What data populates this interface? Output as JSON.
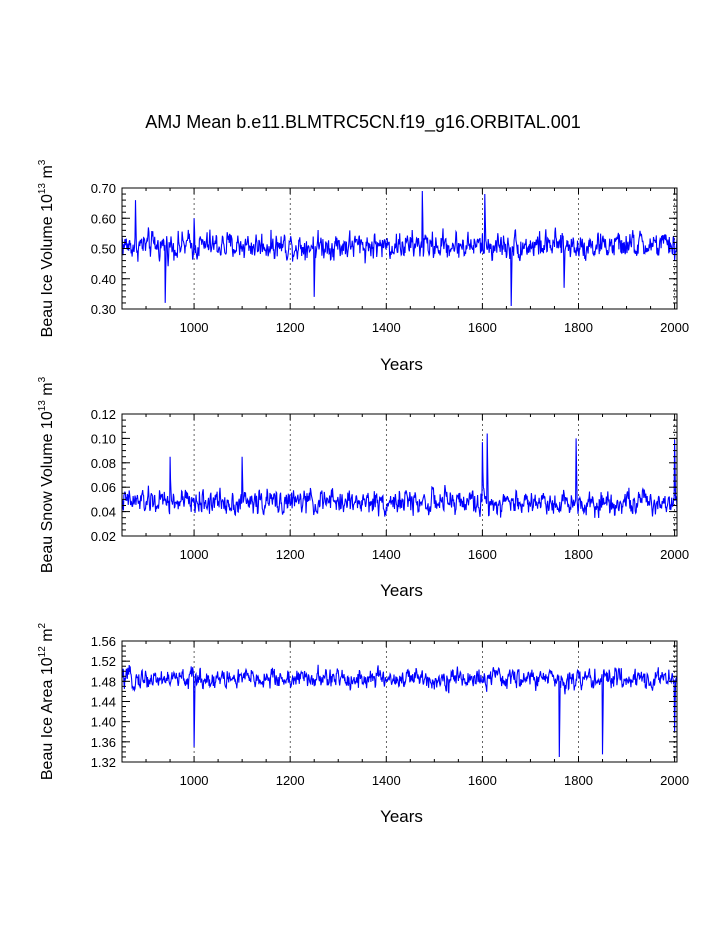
{
  "title": "AMJ Mean b.e11.BLMTRC5CN.f19_g16.ORBITAL.001",
  "chart_data": [
    {
      "type": "line",
      "name": "ice-volume",
      "ylabel": {
        "prefix": "Beau Ice Volume 10",
        "exp1": "13",
        "mid": " m",
        "exp2": "3"
      },
      "xlabel": "Years",
      "xlim": [
        850,
        2005
      ],
      "ylim": [
        0.3,
        0.7
      ],
      "xticks": [
        1000,
        1200,
        1400,
        1600,
        1800,
        2000
      ],
      "xtick_labels": [
        "1000",
        "1200",
        "1400",
        "1600",
        "1800",
        "2000"
      ],
      "yticks": [
        0.3,
        0.4,
        0.5,
        0.6,
        0.7
      ],
      "ytick_labels": [
        "0.30",
        "0.40",
        "0.50",
        "0.60",
        "0.70"
      ],
      "ygrid_minor": 0.02,
      "xgrid_dashed": [
        1000,
        1200,
        1400,
        1600,
        1800,
        2000
      ],
      "color": "#0000ff",
      "series_summary": {
        "mean": 0.51,
        "amplitude": 0.045,
        "min_year": 1660,
        "min_value": 0.31,
        "max_year": 1475,
        "max_value": 0.69
      },
      "key_points": [
        [
          850,
          0.54
        ],
        [
          878,
          0.66
        ],
        [
          940,
          0.32
        ],
        [
          1000,
          0.6
        ],
        [
          1250,
          0.34
        ],
        [
          1475,
          0.69
        ],
        [
          1605,
          0.68
        ],
        [
          1660,
          0.31
        ],
        [
          1770,
          0.37
        ],
        [
          2000,
          0.46
        ]
      ]
    },
    {
      "type": "line",
      "name": "snow-volume",
      "ylabel": {
        "prefix": "Beau Snow Volume 10",
        "exp1": "13",
        "mid": " m",
        "exp2": "3"
      },
      "xlabel": "Years",
      "xlim": [
        850,
        2005
      ],
      "ylim": [
        0.02,
        0.12
      ],
      "xticks": [
        1000,
        1200,
        1400,
        1600,
        1800,
        2000
      ],
      "xtick_labels": [
        "1000",
        "1200",
        "1400",
        "1600",
        "1800",
        "2000"
      ],
      "yticks": [
        0.02,
        0.04,
        0.06,
        0.08,
        0.1,
        0.12
      ],
      "ytick_labels": [
        "0.02",
        "0.04",
        "0.06",
        "0.08",
        "0.10",
        "0.12"
      ],
      "ygrid_minor": 0.005,
      "xgrid_dashed": [
        1000,
        1200,
        1400,
        1600,
        1800,
        2000
      ],
      "color": "#0000ff",
      "series_summary": {
        "mean": 0.048,
        "amplitude": 0.01,
        "max_year": 1610,
        "max_value": 0.104
      },
      "key_points": [
        [
          850,
          0.05
        ],
        [
          950,
          0.085
        ],
        [
          1100,
          0.085
        ],
        [
          1600,
          0.097
        ],
        [
          1610,
          0.104
        ],
        [
          1795,
          0.1
        ],
        [
          2000,
          0.099
        ]
      ]
    },
    {
      "type": "line",
      "name": "ice-area",
      "ylabel": {
        "prefix": "Beau Ice Area 10",
        "exp1": "12",
        "mid": " m",
        "exp2": "2"
      },
      "xlabel": "Years",
      "xlim": [
        850,
        2005
      ],
      "ylim": [
        1.32,
        1.56
      ],
      "xticks": [
        1000,
        1200,
        1400,
        1600,
        1800,
        2000
      ],
      "xtick_labels": [
        "1000",
        "1200",
        "1400",
        "1600",
        "1800",
        "2000"
      ],
      "yticks": [
        1.32,
        1.36,
        1.4,
        1.44,
        1.48,
        1.52,
        1.56
      ],
      "ytick_labels": [
        "1.32",
        "1.36",
        "1.40",
        "1.44",
        "1.48",
        "1.52",
        "1.56"
      ],
      "ygrid_minor": 0.01,
      "xgrid_dashed": [
        1000,
        1200,
        1400,
        1600,
        1800,
        2000
      ],
      "color": "#0000ff",
      "series_summary": {
        "mean": 1.485,
        "amplitude": 0.02,
        "min_year": 1760,
        "min_value": 1.33,
        "max_year": 1480,
        "max_value": 1.53
      },
      "key_points": [
        [
          850,
          1.49
        ],
        [
          1000,
          1.35
        ],
        [
          1760,
          1.33
        ],
        [
          1850,
          1.335
        ],
        [
          2000,
          1.38
        ]
      ]
    }
  ]
}
